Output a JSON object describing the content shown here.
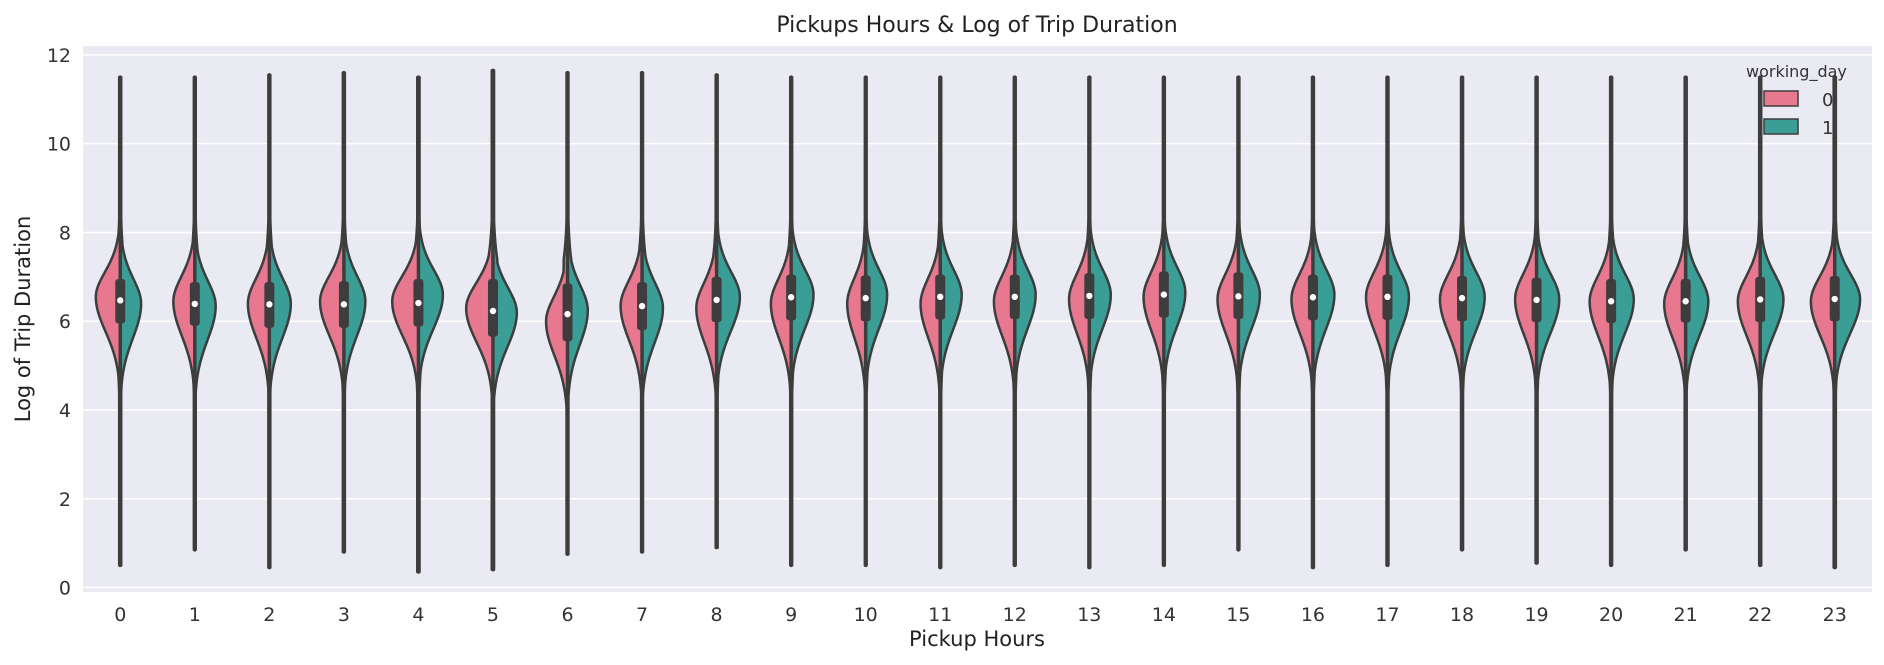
{
  "chart_data": {
    "type": "violin",
    "split": true,
    "title": "Pickups Hours & Log of Trip Duration",
    "xlabel": "Pickup Hours",
    "ylabel": "Log of Trip Duration",
    "categories": [
      "0",
      "1",
      "2",
      "3",
      "4",
      "5",
      "6",
      "7",
      "8",
      "9",
      "10",
      "11",
      "12",
      "13",
      "14",
      "15",
      "16",
      "17",
      "18",
      "19",
      "20",
      "21",
      "22",
      "23"
    ],
    "ylim": [
      -0.1,
      12.2
    ],
    "yticks": [
      "0",
      "2",
      "4",
      "6",
      "8",
      "10",
      "12"
    ],
    "grid": true,
    "legend": {
      "title": "working_day",
      "placement": "top-right",
      "entries": [
        {
          "label": "0",
          "color": "#e8788f"
        },
        {
          "label": "1",
          "color": "#3a9e96"
        }
      ]
    },
    "colors": {
      "background": "#eaeaf2",
      "grid": "#ffffff",
      "outline": "#3d3d3d",
      "series_0": "#e8788f",
      "series_1": "#3a9e96",
      "median_dot": "#ffffff"
    },
    "min": [
      0.5,
      0.85,
      0.45,
      0.8,
      0.35,
      0.4,
      0.75,
      0.8,
      0.9,
      0.5,
      0.5,
      0.45,
      0.5,
      0.45,
      0.5,
      0.85,
      0.45,
      0.5,
      0.85,
      0.55,
      0.5,
      0.85,
      0.5,
      0.45
    ],
    "max": [
      11.5,
      11.5,
      11.55,
      11.6,
      11.5,
      11.65,
      11.6,
      11.6,
      11.55,
      11.5,
      11.5,
      11.5,
      11.5,
      11.5,
      11.5,
      11.5,
      11.5,
      11.5,
      11.5,
      11.5,
      11.5,
      11.5,
      11.5,
      11.5
    ],
    "median": [
      6.47,
      6.39,
      6.38,
      6.38,
      6.41,
      6.23,
      6.16,
      6.34,
      6.48,
      6.54,
      6.52,
      6.55,
      6.55,
      6.57,
      6.6,
      6.56,
      6.54,
      6.55,
      6.52,
      6.48,
      6.45,
      6.45,
      6.49,
      6.5
    ],
    "q1": [
      5.95,
      5.9,
      5.85,
      5.85,
      5.88,
      5.65,
      5.55,
      5.8,
      5.98,
      6.02,
      6.0,
      6.04,
      6.05,
      6.05,
      6.08,
      6.05,
      6.02,
      6.03,
      6.0,
      5.98,
      5.96,
      5.97,
      5.98,
      6.0
    ],
    "q3": [
      6.95,
      6.88,
      6.88,
      6.9,
      6.95,
      6.95,
      6.85,
      6.88,
      7.0,
      7.05,
      7.03,
      7.05,
      7.05,
      7.08,
      7.12,
      7.1,
      7.05,
      7.05,
      7.02,
      6.98,
      6.95,
      6.95,
      7.0,
      7.02
    ],
    "wd0_mode": [
      6.55,
      6.45,
      6.4,
      6.45,
      6.45,
      6.3,
      6.0,
      6.35,
      6.3,
      6.4,
      6.4,
      6.4,
      6.45,
      6.5,
      6.55,
      6.5,
      6.5,
      6.55,
      6.5,
      6.5,
      6.45,
      6.4,
      6.45,
      6.45
    ],
    "wd0_width": [
      0.82,
      0.72,
      0.72,
      0.8,
      0.88,
      0.9,
      0.72,
      0.72,
      0.68,
      0.68,
      0.62,
      0.66,
      0.7,
      0.68,
      0.68,
      0.7,
      0.72,
      0.72,
      0.74,
      0.72,
      0.72,
      0.72,
      0.75,
      0.8
    ],
    "wd1_mode": [
      6.4,
      6.35,
      6.4,
      6.45,
      6.6,
      6.2,
      6.25,
      6.3,
      6.55,
      6.6,
      6.6,
      6.6,
      6.6,
      6.6,
      6.65,
      6.6,
      6.6,
      6.55,
      6.55,
      6.5,
      6.5,
      6.45,
      6.5,
      6.5
    ],
    "wd1_width": [
      0.7,
      0.7,
      0.72,
      0.72,
      0.82,
      0.8,
      0.68,
      0.7,
      0.78,
      0.75,
      0.72,
      0.72,
      0.7,
      0.72,
      0.72,
      0.72,
      0.72,
      0.72,
      0.76,
      0.76,
      0.76,
      0.76,
      0.78,
      0.85
    ]
  }
}
